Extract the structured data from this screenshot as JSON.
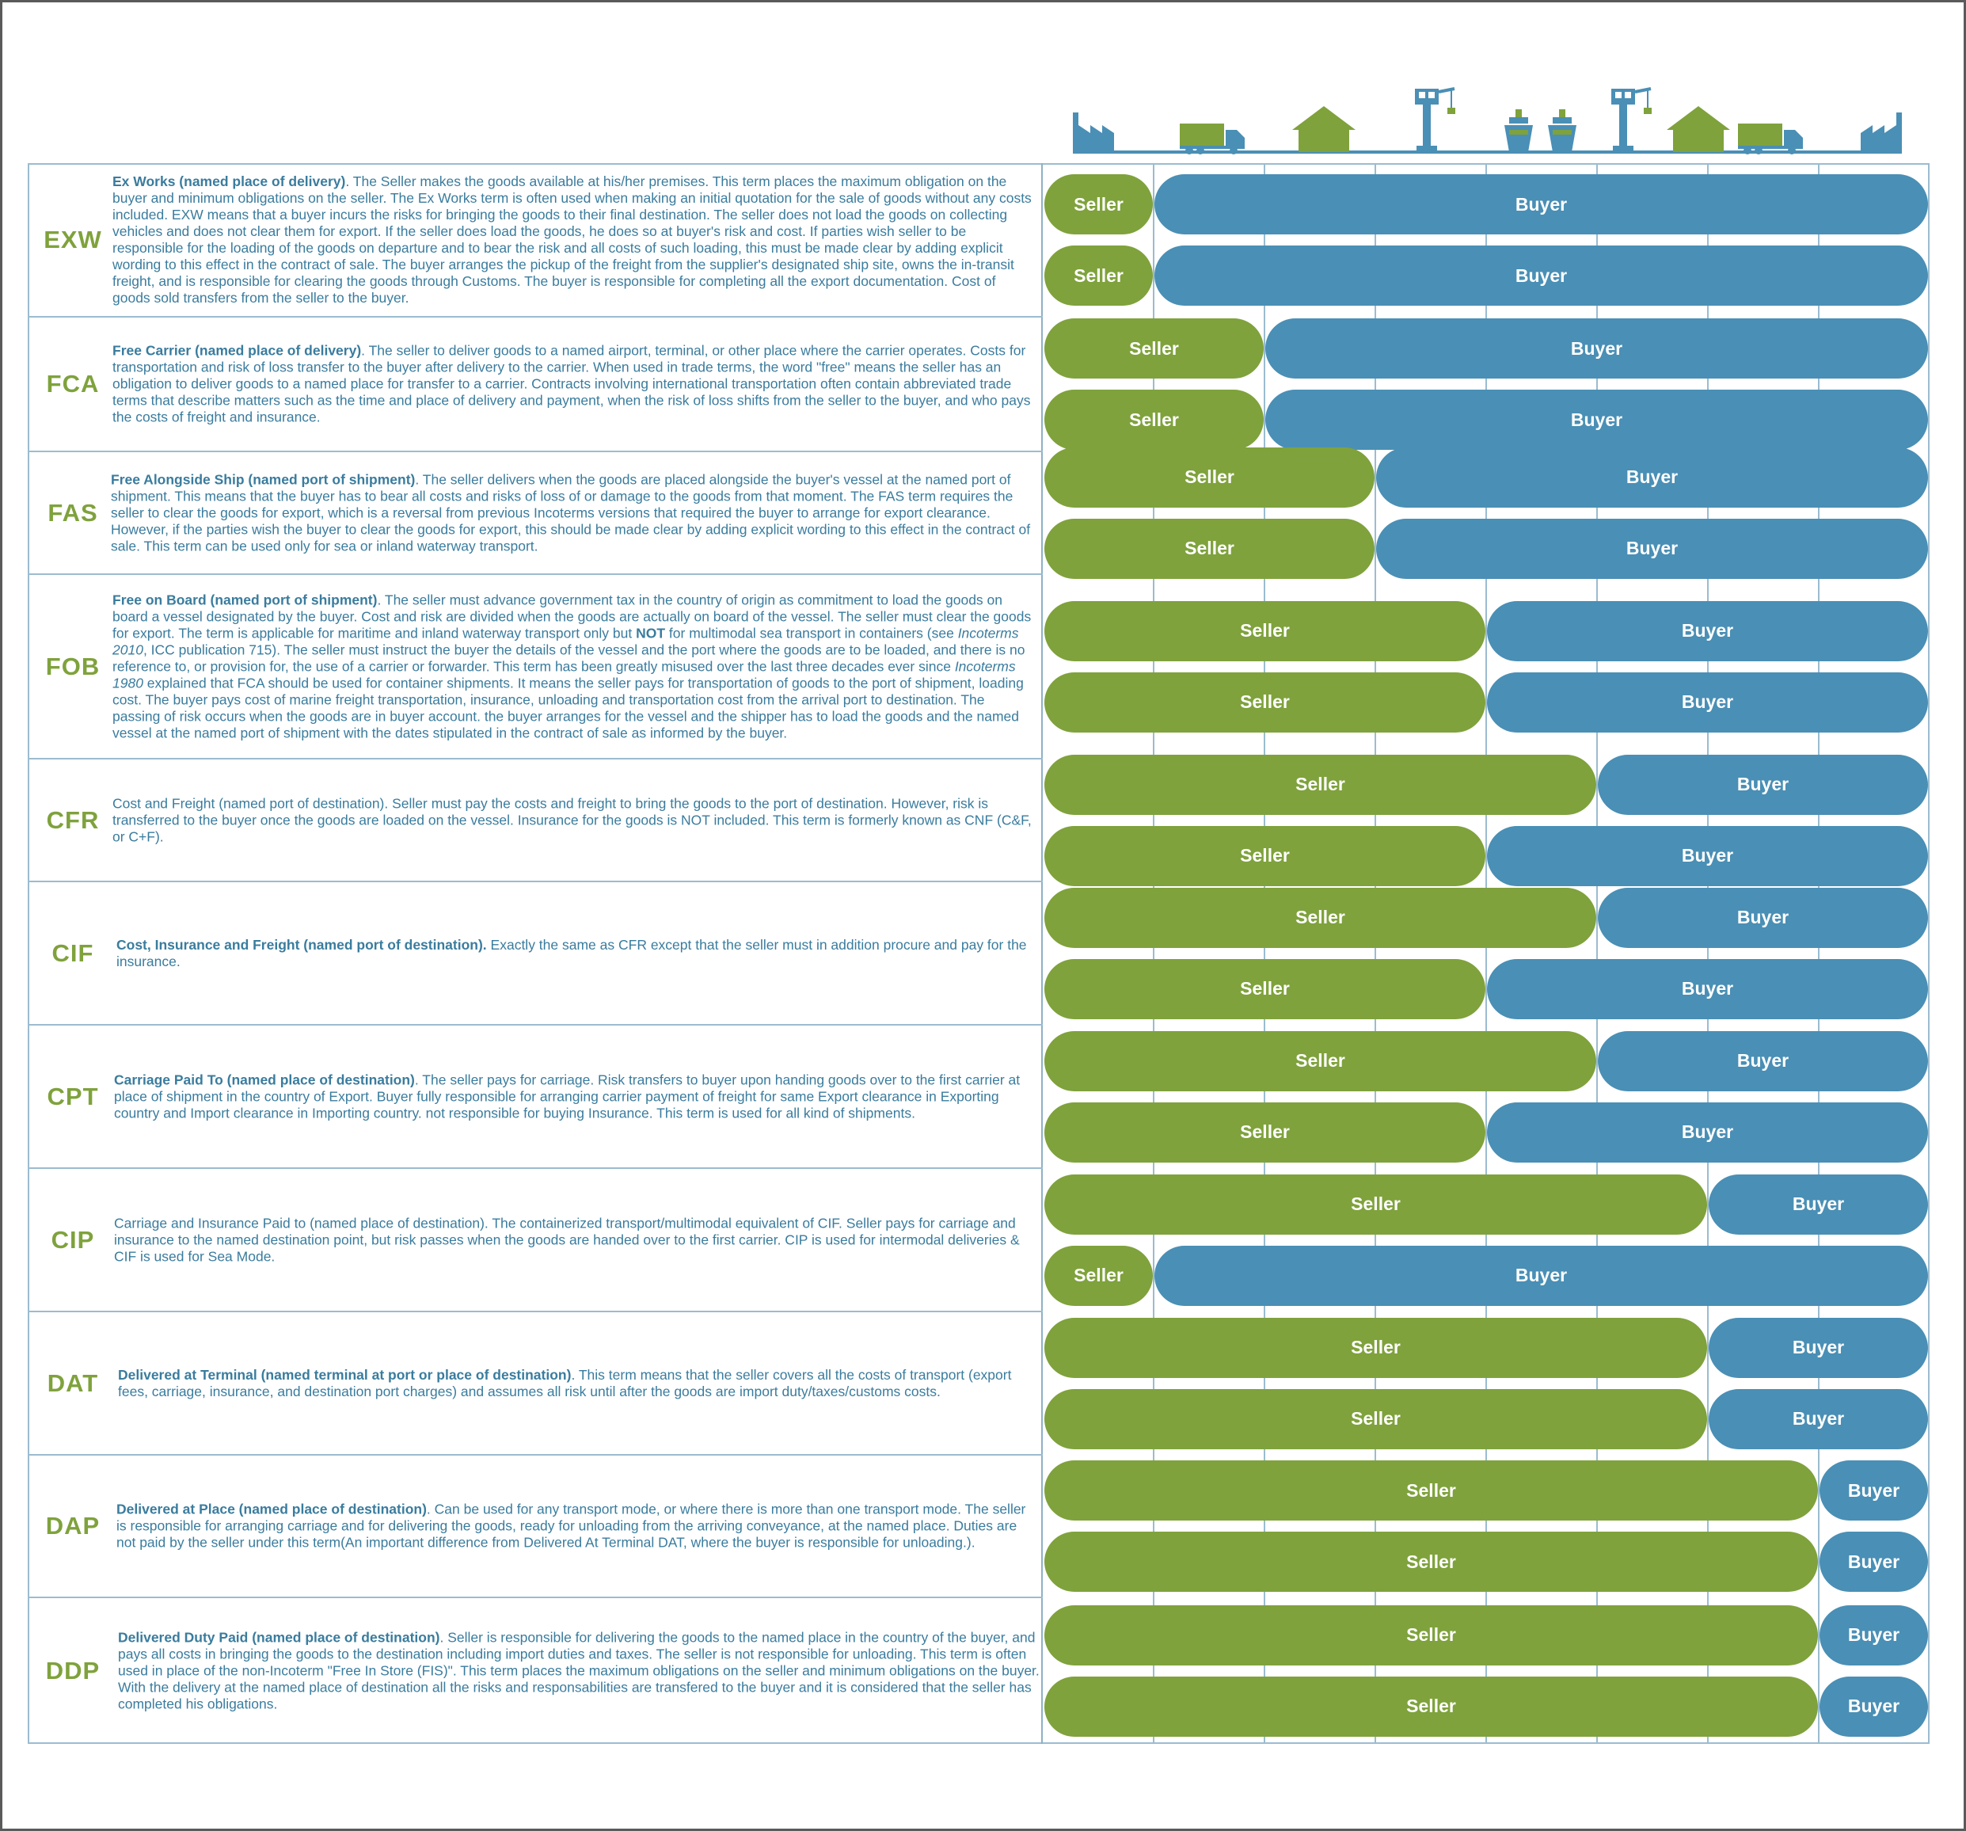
{
  "colors": {
    "seller": "#7fa23c",
    "buyer": "#4a8fb5",
    "icon_green": "#7fa23c",
    "icon_blue": "#4a8fb5",
    "border": "#9bbcd0"
  },
  "icons": [
    "factory-icon",
    "truck-icon",
    "warehouse-icon",
    "port-crane-icon",
    "ship-icon",
    "ship-icon",
    "port-crane-icon",
    "warehouse-icon",
    "truck-icon",
    "factory-icon"
  ],
  "terms": [
    {
      "code": "EXW",
      "desc": [
        {
          "t": "Ex Works (named place of delivery)",
          "s": "name"
        },
        {
          "t": ". The Seller makes the goods available at his/her premises. This term places the maximum obligation on the buyer and minimum obligations on the seller. The Ex Works term is often used when making an initial quotation for the sale of goods without any costs included. EXW means that a buyer incurs the risks for bringing the goods to their final destination. The seller does not load the goods on collecting vehicles and does not clear them for export. If the seller does load the goods, he does so at buyer's risk and cost. If parties wish seller to be responsible for the loading of the goods on departure and to bear the risk and all costs of such loading, this must be made clear by adding explicit wording to this effect in the contract of sale. The buyer arranges the pickup of the freight from the supplier's designated ship site, owns the in-transit freight, and is responsible for clearing the goods through Customs. The buyer is responsible for completing all the export documentation. Cost of goods sold transfers from the seller to the buyer."
        }
      ],
      "bars": [
        {
          "seller_label": "Seller",
          "buyer_label": "Buyer",
          "seller_segments": 1
        },
        {
          "seller_label": "Seller",
          "buyer_label": "Buyer",
          "seller_segments": 1
        }
      ]
    },
    {
      "code": "FCA",
      "desc": [
        {
          "t": "Free Carrier (named place of delivery)",
          "s": "name"
        },
        {
          "t": ". The seller to deliver goods to a named airport, terminal, or other place where the carrier operates. Costs for transportation and risk of loss transfer to the buyer after delivery to the carrier. When used in trade terms, the word \"free\" means the seller has an obligation to deliver goods to a named place for transfer to a carrier. Contracts involving international transportation often contain abbreviated trade terms that describe matters such as the time and place of delivery and payment, when the risk of loss shifts from the seller to the buyer, and who pays the costs of freight and insurance."
        }
      ],
      "bars": [
        {
          "seller_label": "Seller",
          "buyer_label": "Buyer",
          "seller_segments": 2
        },
        {
          "seller_label": "Seller",
          "buyer_label": "Buyer",
          "seller_segments": 2
        }
      ]
    },
    {
      "code": "FAS",
      "desc": [
        {
          "t": "Free Alongside Ship (named port of shipment)",
          "s": "name"
        },
        {
          "t": ". The seller delivers when the goods are placed alongside the buyer's vessel at the named port of shipment. This means that the buyer has to bear all costs and risks of loss of or damage to the goods from that moment. The FAS term requires the seller to clear the goods for export, which is a reversal from previous Incoterms versions that required the buyer to arrange for export clearance. However, if the parties wish the buyer to clear the goods for export, this should be made clear by adding explicit wording to this effect in the contract of sale. This term can be used only for sea or inland waterway transport."
        }
      ],
      "bars": [
        {
          "seller_label": "Seller",
          "buyer_label": "Buyer",
          "seller_segments": 3
        },
        {
          "seller_label": "Seller",
          "buyer_label": "Buyer",
          "seller_segments": 3
        }
      ]
    },
    {
      "code": "FOB",
      "desc": [
        {
          "t": "Free on Board (named port of shipment)",
          "s": "name"
        },
        {
          "t": ". The seller must advance government tax in the country of origin as commitment to load the goods on board a vessel designated by the buyer. Cost and risk are divided when the goods are actually on board of the vessel. The seller must clear the goods for export. The term is applicable for maritime and inland waterway transport only but "
        },
        {
          "t": "NOT",
          "s": "strong"
        },
        {
          "t": " for multimodal sea transport in containers (see "
        },
        {
          "t": "Incoterms 2010",
          "s": "em"
        },
        {
          "t": ", ICC publication 715). The seller must instruct the buyer the details of the vessel and the port where the goods are to be loaded, and there is no reference to, or provision for, the use of a carrier or forwarder. This term has been greatly misused over the last three decades ever since "
        },
        {
          "t": "Incoterms 1980",
          "s": "em"
        },
        {
          "t": " explained that FCA should be used for container shipments. It means the seller pays for transportation of goods to the port of shipment, loading cost. The buyer pays cost of marine freight transportation, insurance, unloading and transportation cost from the arrival port to destination. The passing of risk occurs when the goods are in buyer account. the buyer arranges for the vessel and the shipper has to load the goods and the named vessel at the named port of shipment with the dates stipulated in the contract of sale as informed by the buyer."
        }
      ],
      "bars": [
        {
          "seller_label": "Seller",
          "buyer_label": "Buyer",
          "seller_segments": 4
        },
        {
          "seller_label": "Seller",
          "buyer_label": "Buyer",
          "seller_segments": 4
        }
      ]
    },
    {
      "code": "CFR",
      "desc": [
        {
          "t": "Cost and Freight (named port of destination). Seller must pay the costs and freight to bring the goods to the port of destination. However, risk is transferred to the buyer once the goods are loaded on the vessel. Insurance for the goods is NOT included. This term is formerly known as CNF (C&F, or C+F)."
        }
      ],
      "bars": [
        {
          "seller_label": "Seller",
          "buyer_label": "Buyer",
          "seller_segments": 5
        },
        {
          "seller_label": "Seller",
          "buyer_label": "Buyer",
          "seller_segments": 4
        }
      ]
    },
    {
      "code": "CIF",
      "desc": [
        {
          "t": "Cost, Insurance and Freight (named port of destination).",
          "s": "name"
        },
        {
          "t": " Exactly the same as CFR except that the seller must in addition procure and pay for the insurance."
        }
      ],
      "bars": [
        {
          "seller_label": "Seller",
          "buyer_label": "Buyer",
          "seller_segments": 5
        },
        {
          "seller_label": "Seller",
          "buyer_label": "Buyer",
          "seller_segments": 4
        }
      ]
    },
    {
      "code": "CPT",
      "desc": [
        {
          "t": "Carriage Paid To (named place of destination)",
          "s": "name"
        },
        {
          "t": ". The seller pays for carriage. Risk transfers to buyer upon handing goods over to the first carrier at place of shipment in the country of Export. Buyer fully responsible for arranging carrier payment of freight for same Export clearance in Exporting country and Import clearance in Importing country. not responsible for buying Insurance. This term is used for all kind of shipments."
        }
      ],
      "bars": [
        {
          "seller_label": "Seller",
          "buyer_label": "Buyer",
          "seller_segments": 5
        },
        {
          "seller_label": "Seller",
          "buyer_label": "Buyer",
          "seller_segments": 4
        }
      ]
    },
    {
      "code": "CIP",
      "desc": [
        {
          "t": "Carriage and Insurance Paid to (named place of destination). The containerized transport/multimodal equivalent of CIF. Seller pays for carriage and insurance to the named destination point, but risk passes when the goods are handed over to the first carrier. CIP is used for intermodal deliveries & CIF is used for Sea Mode."
        }
      ],
      "bars": [
        {
          "seller_label": "Seller",
          "buyer_label": "Buyer",
          "seller_segments": 6
        },
        {
          "seller_label": "Seller",
          "buyer_label": "Buyer",
          "seller_segments": 1
        }
      ]
    },
    {
      "code": "DAT",
      "desc": [
        {
          "t": "Delivered at Terminal (named terminal at port or place of destination)",
          "s": "name"
        },
        {
          "t": ". This term means that the seller covers all the costs of transport (export fees, carriage, insurance, and destination port charges) and assumes all risk until after the goods are import duty/taxes/customs costs."
        }
      ],
      "bars": [
        {
          "seller_label": "Seller",
          "buyer_label": "Buyer",
          "seller_segments": 6
        },
        {
          "seller_label": "Seller",
          "buyer_label": "Buyer",
          "seller_segments": 6
        }
      ]
    },
    {
      "code": "DAP",
      "desc": [
        {
          "t": "Delivered at Place (named place of destination)",
          "s": "name"
        },
        {
          "t": ". Can be used for any transport mode, or where there is more than one transport mode. The seller is responsible for arranging carriage and for delivering the goods, ready for unloading from the arriving conveyance, at the named place. Duties are not paid by the seller under this term(An important difference from Delivered At Terminal DAT, where the buyer is responsible for unloading.)."
        }
      ],
      "bars": [
        {
          "seller_label": "Seller",
          "buyer_label": "Buyer",
          "seller_segments": 7
        },
        {
          "seller_label": "Seller",
          "buyer_label": "Buyer",
          "seller_segments": 7
        }
      ]
    },
    {
      "code": "DDP",
      "desc": [
        {
          "t": "Delivered Duty Paid (named place of destination)",
          "s": "name"
        },
        {
          "t": ". Seller is responsible for delivering the goods to the named place in the country of the buyer, and pays all costs in bringing the goods to the destination including import duties and taxes. The seller is not responsible for unloading. This term is often used in place of the non-Incoterm \"Free In Store (FIS)\". This term places the maximum obligations on the seller and minimum obligations on the buyer. With the delivery at the named place of destination all the risks and responsabilities are transfered to the buyer and it is considered that the seller has completed his obligations."
        }
      ],
      "bars": [
        {
          "seller_label": "Seller",
          "buyer_label": "Buyer",
          "seller_segments": 7
        },
        {
          "seller_label": "Seller",
          "buyer_label": "Buyer",
          "seller_segments": 7
        }
      ]
    }
  ]
}
